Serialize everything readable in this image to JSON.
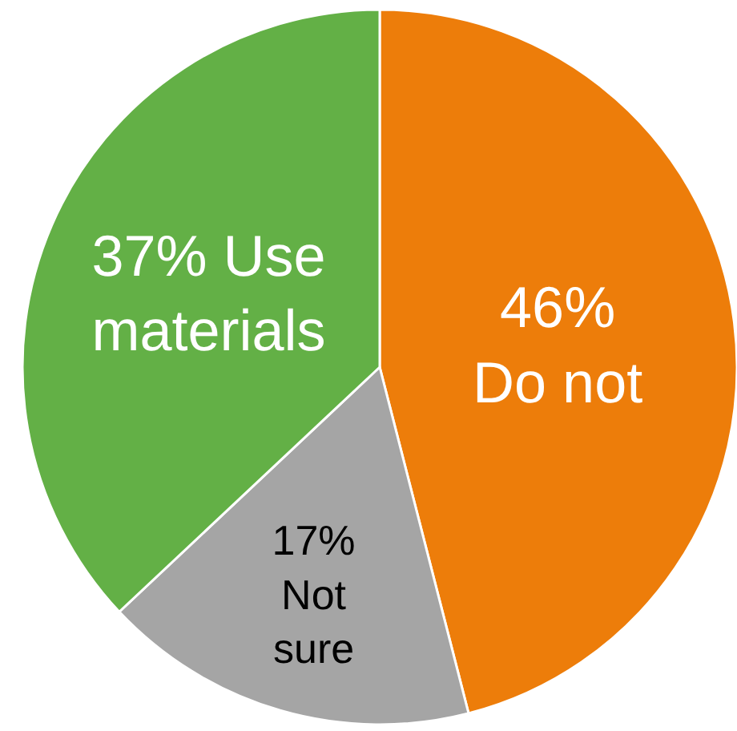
{
  "chart_data": {
    "type": "pie",
    "values": [
      46,
      17,
      37
    ],
    "colors": [
      "#ed7d0a",
      "#a5a5a5",
      "#63b046"
    ],
    "value_labels": [
      "46%\nDo not",
      "17%\nNot\nsure",
      "37% Use\nmaterials"
    ],
    "legend": false
  }
}
